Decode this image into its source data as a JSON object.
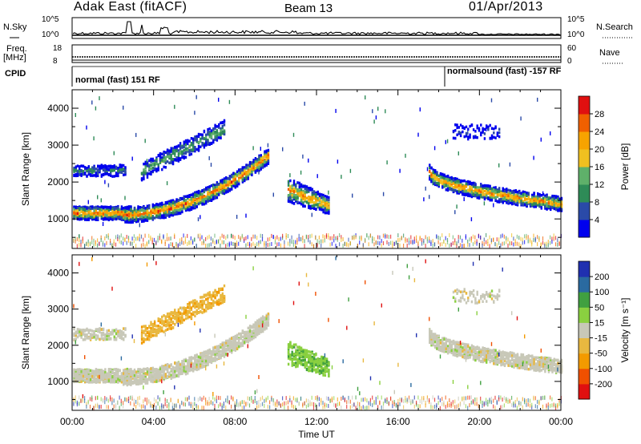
{
  "header": {
    "site": "Adak East (fitACF)",
    "beam": "Beam 13",
    "date": "01/Apr/2013"
  },
  "status": {
    "nsky_label": "N.Sky",
    "nsky_ticks": [
      "10^5",
      "10^0"
    ],
    "nsearch_label": "N.Search",
    "freq_label": "Freq.",
    "freq_unit": "[MHz]",
    "freq_ticks": [
      "18",
      "8"
    ],
    "nave_label": "Nave",
    "nave_ticks": [
      "60",
      "0"
    ],
    "cpid_label": "CPID",
    "cpid_mode1": "normal (fast) 151 RF",
    "cpid_mode2": "normalsound (fast) -157 RF"
  },
  "chart_data": [
    {
      "type": "heatmap",
      "title": "",
      "xlabel": "",
      "ylabel": "Slant Range [km]",
      "x_ticks": [
        "00:00",
        "04:00",
        "08:00",
        "12:00",
        "16:00",
        "20:00",
        "00:00"
      ],
      "ylim": [
        200,
        4500
      ],
      "y_ticks": [
        1000,
        2000,
        3000,
        4000
      ],
      "colorbar_label": "Power [dB]",
      "colorbar_ticks": [
        4,
        8,
        12,
        16,
        20,
        24,
        28
      ],
      "colorbar_range": [
        0,
        32
      ],
      "colors": [
        "#0000ee",
        "#2a4aa8",
        "#2e8b57",
        "#5fb06a",
        "#f0c020",
        "#f7a300",
        "#f06000",
        "#e01010"
      ]
    },
    {
      "type": "heatmap",
      "title": "",
      "xlabel": "Time UT",
      "ylabel": "Slant Range [km]",
      "x_ticks": [
        "00:00",
        "04:00",
        "08:00",
        "12:00",
        "16:00",
        "20:00",
        "00:00"
      ],
      "ylim": [
        200,
        4500
      ],
      "y_ticks": [
        1000,
        2000,
        3000,
        4000
      ],
      "colorbar_label": "Velocity [m s⁻¹]",
      "colorbar_ticks": [
        -200,
        -100,
        -50,
        -15,
        15,
        50,
        100,
        200
      ],
      "colorbar_range": [
        -250,
        250
      ],
      "colors": [
        "#e01010",
        "#f05000",
        "#f39a00",
        "#e8b840",
        "#c8c8b8",
        "#8ad040",
        "#40a040",
        "#2a6aa0",
        "#2030b0"
      ]
    }
  ]
}
